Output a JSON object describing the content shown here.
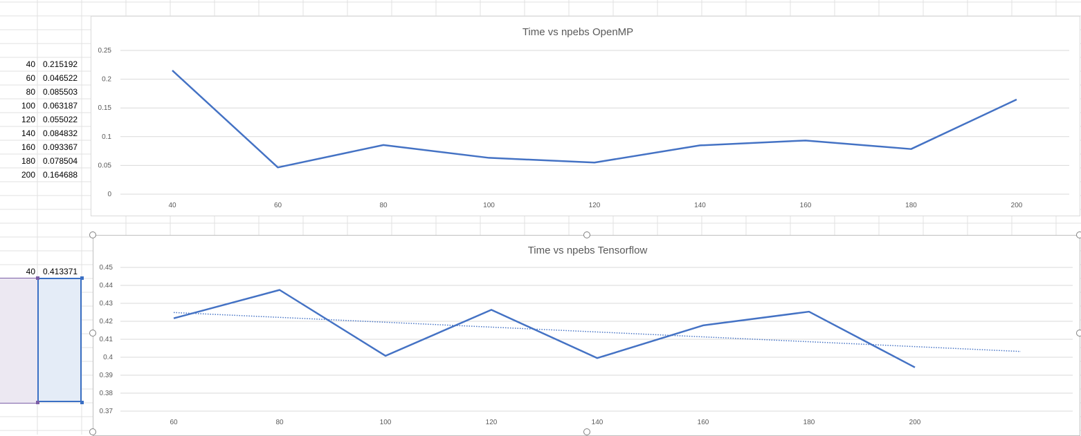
{
  "sheet": {
    "table1": {
      "npebs": [
        "40",
        "60",
        "80",
        "100",
        "120",
        "140",
        "160",
        "180",
        "200"
      ],
      "time": [
        "0.215192",
        "0.046522",
        "0.085503",
        "0.063187",
        "0.055022",
        "0.084832",
        "0.093367",
        "0.078504",
        "0.164688"
      ]
    },
    "table2": {
      "npebs": [
        "40",
        "60",
        "80",
        "100",
        "120",
        "140",
        "160",
        "180",
        "200"
      ],
      "time": [
        "0.413371",
        "0.421665",
        "0.437452",
        "0.400778",
        "0.426395",
        "0.399524",
        "0.417724",
        "0.425357",
        "0.394344"
      ]
    }
  },
  "chart_data": [
    {
      "type": "line",
      "title": "Time vs npebs OpenMP",
      "categories": [
        "40",
        "60",
        "80",
        "100",
        "120",
        "140",
        "160",
        "180",
        "200"
      ],
      "series": [
        {
          "values": [
            0.215192,
            0.046522,
            0.085503,
            0.063187,
            0.055022,
            0.084832,
            0.093367,
            0.078504,
            0.164688
          ]
        }
      ],
      "ylim": [
        0,
        0.25
      ],
      "yticks": [
        "0",
        "0.05",
        "0.1",
        "0.15",
        "0.2",
        "0.25"
      ],
      "grid": true,
      "color": "#4472c4"
    },
    {
      "type": "line",
      "title": "Time vs npebs Tensorflow",
      "categories": [
        "60",
        "80",
        "100",
        "120",
        "140",
        "160",
        "180",
        "200"
      ],
      "series": [
        {
          "values": [
            0.421665,
            0.437452,
            0.400778,
            0.426395,
            0.399524,
            0.417724,
            0.425357,
            0.394344
          ]
        }
      ],
      "trendline": {
        "style": "dotted",
        "kind": "linear"
      },
      "ylim": [
        0.37,
        0.45
      ],
      "yticks": [
        "0.37",
        "0.38",
        "0.39",
        "0.4",
        "0.41",
        "0.42",
        "0.43",
        "0.44",
        "0.45"
      ],
      "grid": true,
      "color": "#4472c4"
    }
  ]
}
